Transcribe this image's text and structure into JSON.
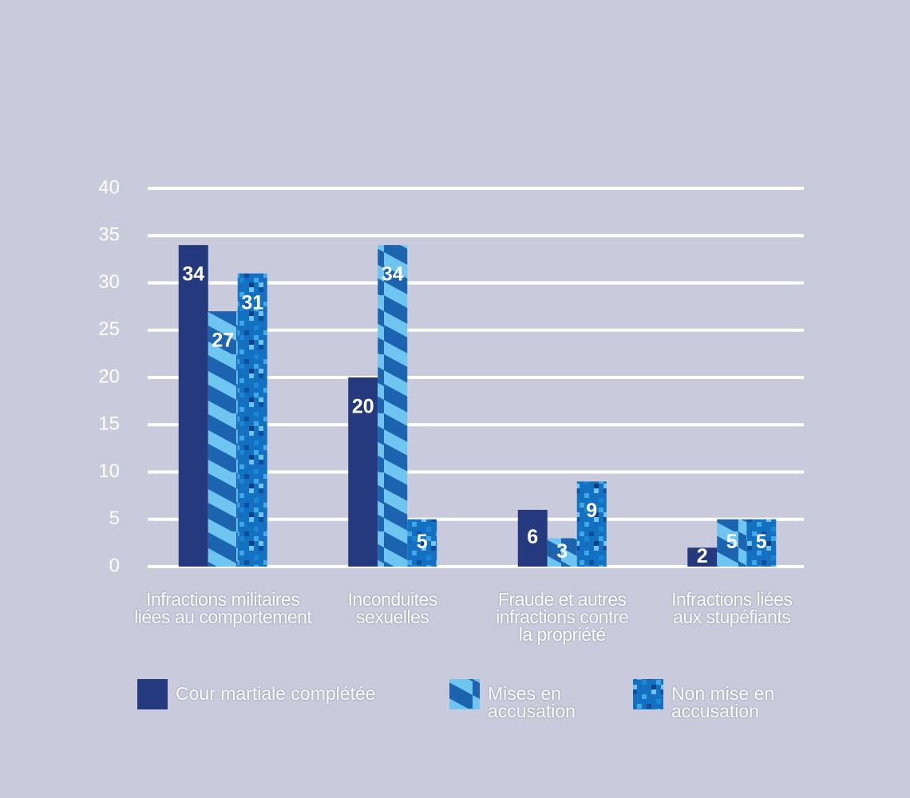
{
  "chart_data": {
    "type": "bar",
    "categories": [
      "Infractions militaires\nliées au comportement",
      "Inconduites\nsexuelles",
      "Fraude et autres\ninfractions contre\nla propriété",
      "Infractions liées\naux stupéfiants"
    ],
    "series": [
      {
        "name": "Cour martiale complétée",
        "color": "#253a7e",
        "values": [
          34,
          20,
          6,
          2
        ]
      },
      {
        "name": "Mises en\naccusation",
        "color": "#1c64b0",
        "pattern": "stripes",
        "values": [
          27,
          34,
          3,
          5
        ]
      },
      {
        "name": "Non mise en\naccusation",
        "color": "#1470c0",
        "pattern": "pixels",
        "values": [
          31,
          5,
          9,
          5
        ]
      }
    ],
    "ylim": [
      0,
      40
    ],
    "yticks": [
      0,
      5,
      10,
      15,
      20,
      25,
      30,
      35,
      40
    ],
    "grid": true
  }
}
